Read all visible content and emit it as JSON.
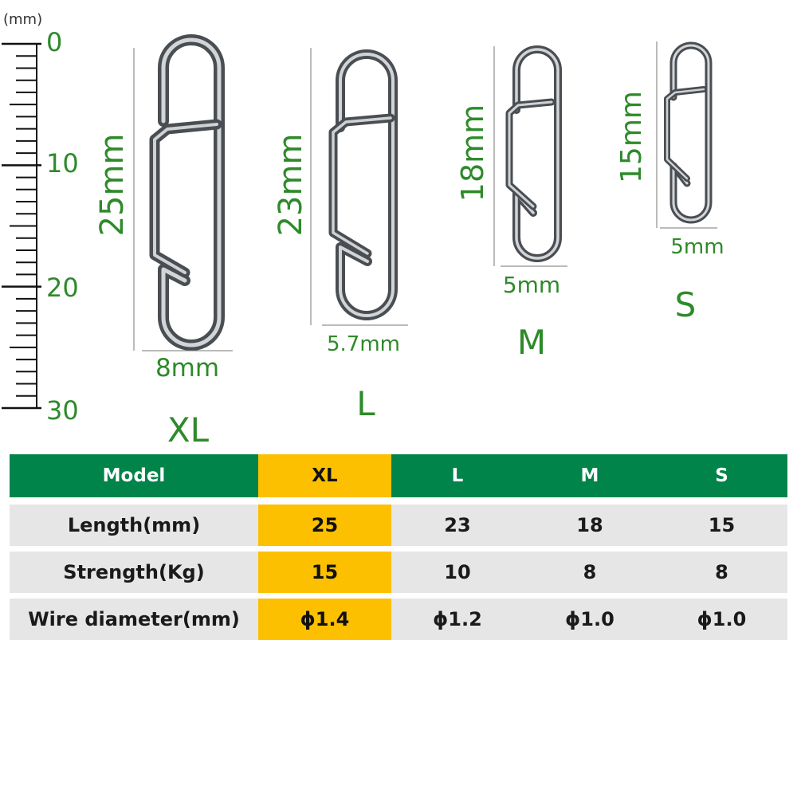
{
  "ruler": {
    "unit_label": "(mm)",
    "marks": [
      "0",
      "10",
      "20",
      "30"
    ]
  },
  "clips": [
    {
      "model": "XL",
      "length_label": "25mm",
      "width_label": "8mm"
    },
    {
      "model": "L",
      "length_label": "23mm",
      "width_label": "5.7mm"
    },
    {
      "model": "M",
      "length_label": "18mm",
      "width_label": "5mm"
    },
    {
      "model": "S",
      "length_label": "15mm",
      "width_label": "5mm"
    }
  ],
  "table": {
    "header": [
      "Model",
      "XL",
      "L",
      "M",
      "S"
    ],
    "rows": [
      [
        "Length(mm)",
        "25",
        "23",
        "18",
        "15"
      ],
      [
        "Strength(Kg)",
        "15",
        "10",
        "8",
        "8"
      ],
      [
        "Wire diameter(mm)",
        "ϕ1.4",
        "ϕ1.2",
        "ϕ1.0",
        "ϕ1.0"
      ]
    ]
  },
  "colors": {
    "label_green": "#2e8a2a",
    "header_green": "#00844a",
    "highlight": "#fdc000",
    "row_gray": "#e6e6e6",
    "steel": "#8a8f94"
  }
}
